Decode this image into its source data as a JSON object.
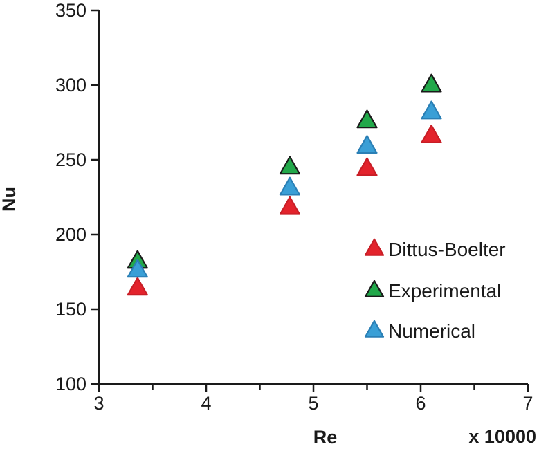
{
  "chart_data": {
    "type": "scatter",
    "xlabel": "Re",
    "ylabel": "Nu",
    "x_multiplier_label": "x 10000",
    "xlim": [
      3,
      7
    ],
    "ylim": [
      100,
      350
    ],
    "x_ticks": [
      3,
      4,
      5,
      6,
      7
    ],
    "y_ticks": [
      100,
      150,
      200,
      250,
      300,
      350
    ],
    "x_minor_ticks": [
      3.5,
      4.5,
      5.5,
      6.5
    ],
    "grid": false,
    "legend_position": "right",
    "series": [
      {
        "name": "Dittus-Boelter",
        "color": "#e3232c",
        "marker": "triangle",
        "x": [
          3.36,
          4.78,
          5.5,
          6.1
        ],
        "y": [
          164,
          218,
          244,
          266
        ]
      },
      {
        "name": "Experimental",
        "color": "#22a84a",
        "marker": "triangle",
        "x": [
          3.36,
          4.78,
          5.5,
          6.1
        ],
        "y": [
          182,
          245,
          276,
          300
        ]
      },
      {
        "name": "Numerical",
        "color": "#3a9fd6",
        "marker": "triangle",
        "x": [
          3.36,
          4.78,
          5.5,
          6.1
        ],
        "y": [
          176,
          231,
          259,
          282
        ]
      }
    ]
  }
}
